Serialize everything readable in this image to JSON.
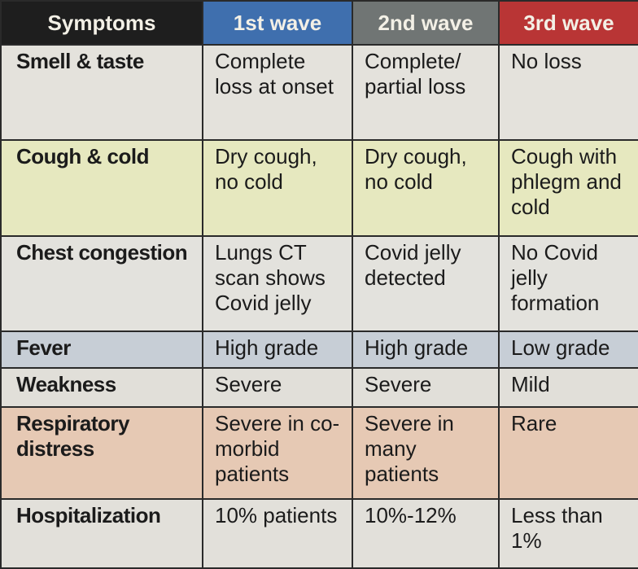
{
  "table": {
    "header": [
      "Symptoms",
      "1st wave",
      "2nd wave",
      "3rd wave"
    ],
    "rows": [
      [
        "Smell & taste",
        "Complete loss at onset",
        "Complete/ partial loss",
        "No loss"
      ],
      [
        "Cough & cold",
        "Dry cough, no cold",
        "Dry cough, no cold",
        "Cough with phlegm and cold"
      ],
      [
        "Chest congestion",
        "Lungs CT scan shows Covid jelly",
        "Covid jelly detected",
        "No Covid jelly formation"
      ],
      [
        "Fever",
        "High grade",
        "High grade",
        "Low grade"
      ],
      [
        "Weakness",
        "Severe",
        "Severe",
        "Mild"
      ],
      [
        "Respiratory distress",
        "Severe in co-morbid patients",
        "Severe in many patients",
        "Rare"
      ],
      [
        "Hospitalization",
        "10% patients",
        "10%-12%",
        "Less than 1%"
      ]
    ]
  }
}
